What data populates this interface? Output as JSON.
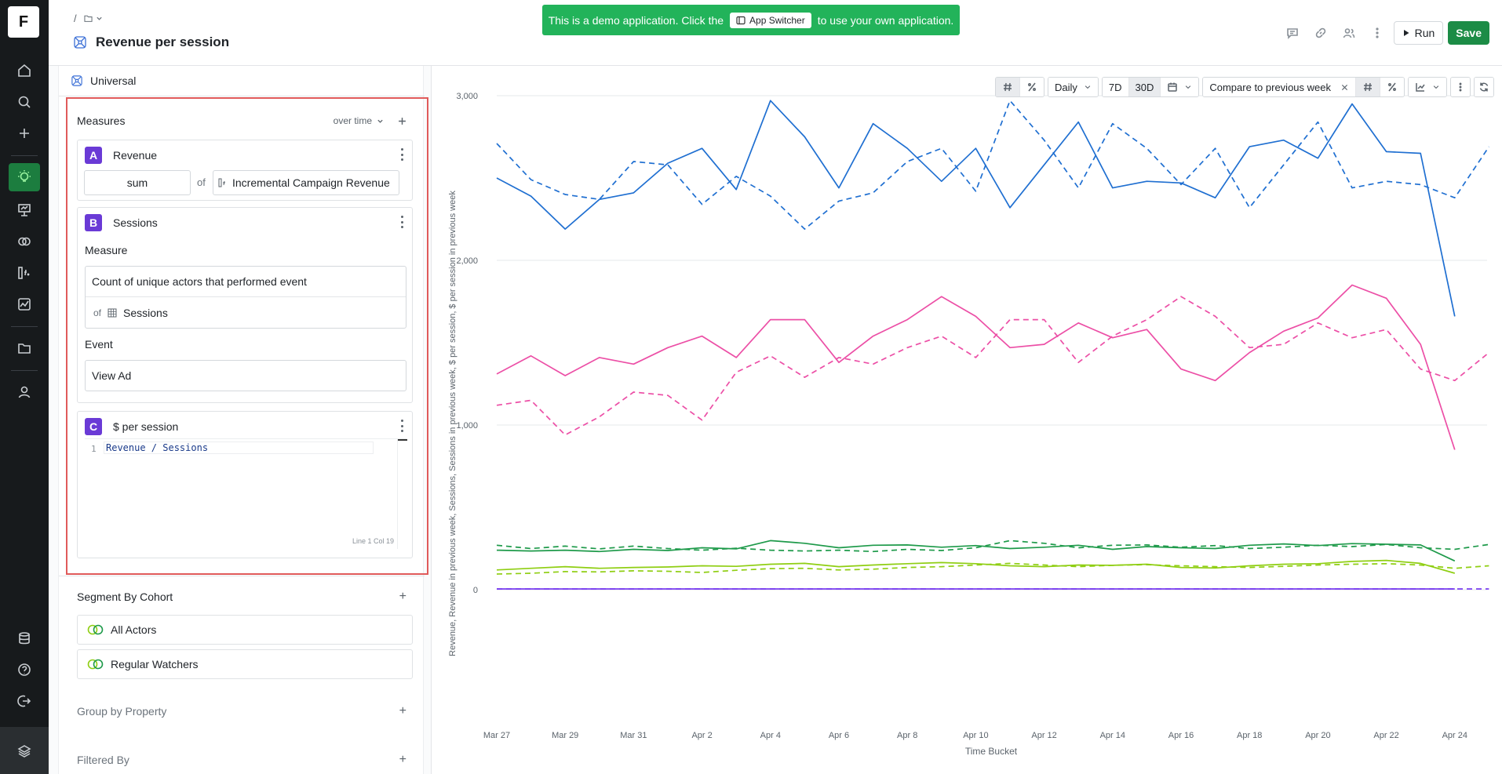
{
  "rail": {
    "logo": "F",
    "items": [
      {
        "name": "home-icon"
      },
      {
        "name": "search-icon"
      },
      {
        "name": "plus-icon"
      },
      {
        "name": "insights-bulb-icon",
        "active": true
      },
      {
        "name": "presentation-icon"
      },
      {
        "name": "cohorts-icon"
      },
      {
        "name": "metrics-icon"
      },
      {
        "name": "chart-icon"
      },
      {
        "name": "folder-icon"
      },
      {
        "name": "user-icon"
      },
      {
        "name": "database-icon"
      },
      {
        "name": "help-icon"
      },
      {
        "name": "logout-icon"
      }
    ]
  },
  "header": {
    "breadcrumb_sep": "/",
    "title": "Revenue per session",
    "banner": {
      "before": "This is a demo application. Click the",
      "chip": "App Switcher",
      "after": "to use your own application."
    },
    "run_label": "Run",
    "save_label": "Save"
  },
  "panel": {
    "universal": "Universal",
    "measures_label": "Measures",
    "over_time": "over time",
    "measure_a": {
      "letter": "A",
      "name": "Revenue",
      "agg": "sum",
      "of": "of",
      "metric": "Incremental Campaign Revenue"
    },
    "measure_b": {
      "letter": "B",
      "name": "Sessions",
      "measure_label": "Measure",
      "measure_value": "Count of unique actors that performed event",
      "of": "of",
      "of_value": "Sessions",
      "event_label": "Event",
      "event_value": "View Ad"
    },
    "measure_c": {
      "letter": "C",
      "name": "$ per session",
      "line_no": "1",
      "code": "Revenue / Sessions",
      "cursor": "Line 1 Col 19"
    },
    "segment_label": "Segment By Cohort",
    "cohorts": [
      "All Actors",
      "Regular Watchers"
    ],
    "group_label": "Group by Property",
    "filter_label": "Filtered By"
  },
  "toolbar": {
    "granularity": "Daily",
    "range_7d": "7D",
    "range_30d": "30D",
    "compare": "Compare to previous week"
  },
  "chart_data": {
    "type": "line",
    "xlabel": "Time Bucket",
    "ylabel": "Revenue, Revenue in previous week, Sessions, Sessions in previous week, $ per session, $ per session in previous week",
    "ylim": [
      0,
      3000
    ],
    "yticks": [
      0,
      1000,
      2000,
      3000
    ],
    "ytick_labels": [
      "0",
      "1,000",
      "2,000",
      "3,000"
    ],
    "x_tick_labels": [
      "Mar 27",
      "Mar 29",
      "Mar 31",
      "Apr 2",
      "Apr 4",
      "Apr 6",
      "Apr 8",
      "Apr 10",
      "Apr 12",
      "Apr 14",
      "Apr 16",
      "Apr 18",
      "Apr 20",
      "Apr 22",
      "Apr 24"
    ],
    "x_count": 30,
    "series": [
      {
        "key": "blue_solid",
        "color": "#1f6fd1",
        "dashed": false,
        "values": [
          2500,
          2390,
          2190,
          2370,
          2410,
          2590,
          2680,
          2430,
          2970,
          2750,
          2440,
          2830,
          2680,
          2480,
          2680,
          2320,
          2580,
          2840,
          2440,
          2480,
          2470,
          2380,
          2690,
          2730,
          2620,
          2950,
          2660,
          2650,
          1660,
          null
        ]
      },
      {
        "key": "blue_dashed",
        "color": "#1f6fd1",
        "dashed": true,
        "values": [
          2710,
          2490,
          2400,
          2370,
          2600,
          2580,
          2340,
          2510,
          2390,
          2190,
          2360,
          2410,
          2600,
          2680,
          2420,
          2970,
          2730,
          2440,
          2830,
          2680,
          2460,
          2680,
          2320,
          2580,
          2840,
          2440,
          2480,
          2460,
          2380,
          2690
        ]
      },
      {
        "key": "pink_solid",
        "color": "#ec4fa6",
        "dashed": false,
        "values": [
          1310,
          1420,
          1300,
          1410,
          1370,
          1470,
          1540,
          1410,
          1640,
          1640,
          1380,
          1540,
          1640,
          1780,
          1660,
          1470,
          1490,
          1620,
          1530,
          1580,
          1340,
          1270,
          1440,
          1570,
          1650,
          1850,
          1770,
          1490,
          850,
          null
        ]
      },
      {
        "key": "pink_dashed",
        "color": "#ec4fa6",
        "dashed": true,
        "values": [
          1120,
          1150,
          940,
          1050,
          1200,
          1180,
          1030,
          1320,
          1420,
          1290,
          1410,
          1370,
          1470,
          1540,
          1410,
          1640,
          1640,
          1380,
          1540,
          1640,
          1780,
          1660,
          1470,
          1490,
          1620,
          1530,
          1580,
          1340,
          1270,
          1440
        ]
      },
      {
        "key": "green_solid",
        "color": "#1e9a4a",
        "dashed": false,
        "values": [
          240,
          235,
          240,
          232,
          245,
          238,
          255,
          248,
          298,
          282,
          255,
          270,
          272,
          258,
          268,
          250,
          258,
          270,
          245,
          262,
          255,
          250,
          270,
          278,
          268,
          280,
          276,
          272,
          175,
          null
        ]
      },
      {
        "key": "green_dashed",
        "color": "#1e9a4a",
        "dashed": true,
        "values": [
          270,
          250,
          265,
          248,
          265,
          250,
          240,
          252,
          240,
          235,
          240,
          232,
          245,
          238,
          255,
          298,
          282,
          255,
          270,
          272,
          258,
          268,
          250,
          258,
          270,
          262,
          275,
          255,
          245,
          275
        ]
      },
      {
        "key": "lime_solid",
        "color": "#8fce12",
        "dashed": false,
        "values": [
          120,
          130,
          140,
          130,
          135,
          138,
          145,
          142,
          155,
          160,
          140,
          150,
          158,
          165,
          158,
          145,
          140,
          150,
          148,
          155,
          135,
          132,
          145,
          155,
          158,
          172,
          178,
          160,
          100,
          null
        ]
      },
      {
        "key": "lime_dashed",
        "color": "#8fce12",
        "dashed": true,
        "values": [
          95,
          100,
          110,
          108,
          115,
          112,
          105,
          118,
          128,
          130,
          120,
          125,
          135,
          140,
          150,
          160,
          150,
          140,
          148,
          152,
          145,
          140,
          135,
          142,
          150,
          155,
          158,
          150,
          130,
          145
        ]
      },
      {
        "key": "purple_solid",
        "color": "#7a3ff0",
        "dashed": false,
        "values": [
          5,
          5,
          5,
          5,
          5,
          5,
          5,
          5,
          5,
          5,
          5,
          5,
          5,
          5,
          5,
          5,
          5,
          5,
          5,
          5,
          5,
          5,
          5,
          5,
          5,
          5,
          5,
          5,
          5,
          null
        ]
      },
      {
        "key": "purple_dashed",
        "color": "#7a3ff0",
        "dashed": true,
        "values": [
          5,
          5,
          5,
          5,
          5,
          5,
          5,
          5,
          5,
          5,
          5,
          5,
          5,
          5,
          5,
          5,
          5,
          5,
          5,
          5,
          5,
          5,
          5,
          5,
          5,
          5,
          5,
          5,
          5,
          5
        ]
      }
    ]
  }
}
